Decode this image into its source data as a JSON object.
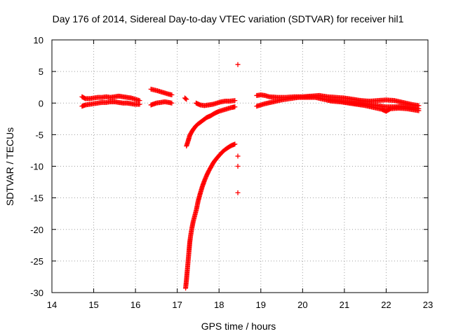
{
  "chart_data": {
    "type": "scatter",
    "title": "Day 176 of 2014, Sidereal Day-to-day VTEC variation (SDTVAR) for receiver hil1",
    "xlabel": "GPS time / hours",
    "ylabel": "SDTVAR / TECUs",
    "xlim": [
      14,
      23
    ],
    "ylim": [
      -30,
      10
    ],
    "xticks": [
      14,
      15,
      16,
      17,
      18,
      19,
      20,
      21,
      22,
      23
    ],
    "yticks": [
      -30,
      -25,
      -20,
      -15,
      -10,
      -5,
      0,
      5,
      10
    ],
    "grid": "dotted",
    "marker": "+",
    "color": "#ff0000",
    "series": [
      {
        "name": "upper-band-a",
        "points": [
          [
            14.72,
            1.0
          ],
          [
            14.8,
            0.7
          ],
          [
            14.9,
            0.7
          ],
          [
            15.0,
            0.8
          ],
          [
            15.1,
            0.9
          ],
          [
            15.2,
            0.9
          ],
          [
            15.3,
            1.0
          ],
          [
            15.4,
            0.9
          ],
          [
            15.5,
            1.0
          ],
          [
            15.6,
            1.1
          ],
          [
            15.7,
            1.0
          ],
          [
            15.8,
            0.9
          ],
          [
            15.9,
            0.8
          ],
          [
            16.0,
            0.6
          ],
          [
            16.1,
            0.4
          ]
        ]
      },
      {
        "name": "lower-band-a",
        "points": [
          [
            14.72,
            -0.5
          ],
          [
            14.8,
            -0.3
          ],
          [
            14.9,
            -0.2
          ],
          [
            15.0,
            -0.1
          ],
          [
            15.1,
            0.0
          ],
          [
            15.2,
            0.1
          ],
          [
            15.3,
            0.1
          ],
          [
            15.4,
            0.2
          ],
          [
            15.5,
            0.2
          ],
          [
            15.6,
            0.1
          ],
          [
            15.7,
            0.0
          ],
          [
            15.8,
            0.0
          ],
          [
            15.9,
            -0.1
          ],
          [
            16.0,
            -0.2
          ],
          [
            16.1,
            -0.2
          ]
        ]
      },
      {
        "name": "band-b-upper",
        "points": [
          [
            16.37,
            2.2
          ],
          [
            16.5,
            2.0
          ],
          [
            16.6,
            1.8
          ],
          [
            16.7,
            1.6
          ],
          [
            16.8,
            1.4
          ],
          [
            16.87,
            1.3
          ]
        ]
      },
      {
        "name": "band-b-lower",
        "points": [
          [
            16.37,
            -0.3
          ],
          [
            16.5,
            0.0
          ],
          [
            16.6,
            0.1
          ],
          [
            16.7,
            0.2
          ],
          [
            16.8,
            0.1
          ],
          [
            16.87,
            0.0
          ]
        ]
      },
      {
        "name": "isolated-17.2",
        "points": [
          [
            17.18,
            0.8
          ],
          [
            17.22,
            0.6
          ]
        ]
      },
      {
        "name": "band-c",
        "points": [
          [
            17.45,
            0.0
          ],
          [
            17.55,
            -0.3
          ],
          [
            17.65,
            -0.4
          ],
          [
            17.75,
            -0.3
          ],
          [
            17.85,
            -0.2
          ],
          [
            17.95,
            0.0
          ],
          [
            18.05,
            0.2
          ],
          [
            18.15,
            0.3
          ],
          [
            18.25,
            0.3
          ],
          [
            18.38,
            0.4
          ]
        ]
      },
      {
        "name": "curve-upper",
        "points": [
          [
            17.22,
            -6.8
          ],
          [
            17.26,
            -6.0
          ],
          [
            17.3,
            -5.1
          ],
          [
            17.35,
            -4.5
          ],
          [
            17.4,
            -4.0
          ],
          [
            17.45,
            -3.6
          ],
          [
            17.5,
            -3.3
          ],
          [
            17.6,
            -2.8
          ],
          [
            17.7,
            -2.3
          ],
          [
            17.8,
            -2.0
          ],
          [
            17.9,
            -1.6
          ],
          [
            18.0,
            -1.3
          ],
          [
            18.1,
            -1.1
          ],
          [
            18.2,
            -0.9
          ],
          [
            18.3,
            -0.7
          ],
          [
            18.38,
            -0.6
          ]
        ]
      },
      {
        "name": "curve-lower",
        "points": [
          [
            17.2,
            -29.3
          ],
          [
            17.22,
            -28.0
          ],
          [
            17.24,
            -26.5
          ],
          [
            17.26,
            -25.0
          ],
          [
            17.28,
            -23.5
          ],
          [
            17.3,
            -22.0
          ],
          [
            17.32,
            -21.0
          ],
          [
            17.35,
            -19.8
          ],
          [
            17.38,
            -18.8
          ],
          [
            17.42,
            -17.8
          ],
          [
            17.46,
            -16.8
          ],
          [
            17.5,
            -15.5
          ],
          [
            17.55,
            -14.3
          ],
          [
            17.6,
            -13.2
          ],
          [
            17.65,
            -12.3
          ],
          [
            17.7,
            -11.5
          ],
          [
            17.75,
            -10.8
          ],
          [
            17.8,
            -10.2
          ],
          [
            17.85,
            -9.6
          ],
          [
            17.9,
            -9.1
          ],
          [
            18.0,
            -8.3
          ],
          [
            18.1,
            -7.6
          ],
          [
            18.2,
            -7.1
          ],
          [
            18.3,
            -6.7
          ],
          [
            18.38,
            -6.5
          ]
        ]
      },
      {
        "name": "outliers-18.45",
        "points": [
          [
            18.45,
            6.1
          ],
          [
            18.45,
            -8.4
          ],
          [
            18.45,
            -10.0
          ],
          [
            18.45,
            -14.2
          ]
        ]
      },
      {
        "name": "upper-band-d",
        "points": [
          [
            18.9,
            1.2
          ],
          [
            19.0,
            1.3
          ],
          [
            19.1,
            1.2
          ],
          [
            19.2,
            1.0
          ],
          [
            19.4,
            0.9
          ],
          [
            19.6,
            0.9
          ],
          [
            19.8,
            1.0
          ],
          [
            20.0,
            1.0
          ],
          [
            20.2,
            1.1
          ],
          [
            20.4,
            1.2
          ],
          [
            20.6,
            1.0
          ],
          [
            20.8,
            0.9
          ],
          [
            21.0,
            0.8
          ],
          [
            21.2,
            0.6
          ],
          [
            21.4,
            0.4
          ],
          [
            21.6,
            0.3
          ],
          [
            21.8,
            0.4
          ],
          [
            22.0,
            0.5
          ],
          [
            22.2,
            0.4
          ],
          [
            22.4,
            0.1
          ],
          [
            22.6,
            -0.2
          ],
          [
            22.78,
            -0.4
          ]
        ]
      },
      {
        "name": "lower-band-d",
        "points": [
          [
            18.9,
            -0.5
          ],
          [
            19.0,
            -0.3
          ],
          [
            19.1,
            -0.1
          ],
          [
            19.3,
            0.2
          ],
          [
            19.5,
            0.5
          ],
          [
            19.7,
            0.7
          ],
          [
            19.9,
            0.9
          ],
          [
            20.1,
            0.9
          ],
          [
            20.3,
            0.9
          ],
          [
            20.5,
            0.6
          ],
          [
            20.7,
            0.3
          ],
          [
            20.9,
            0.2
          ],
          [
            21.1,
            0.0
          ],
          [
            21.3,
            -0.2
          ],
          [
            21.5,
            -0.4
          ],
          [
            21.7,
            -0.7
          ],
          [
            21.9,
            -1.0
          ],
          [
            22.0,
            -1.3
          ],
          [
            22.1,
            -0.9
          ],
          [
            22.3,
            -0.8
          ],
          [
            22.5,
            -0.9
          ],
          [
            22.78,
            -1.2
          ]
        ]
      },
      {
        "name": "middle-band-d",
        "points": [
          [
            20.6,
            0.5
          ],
          [
            20.8,
            0.4
          ],
          [
            21.0,
            0.2
          ],
          [
            21.2,
            0.0
          ],
          [
            21.4,
            -0.1
          ],
          [
            21.6,
            -0.2
          ],
          [
            21.8,
            -0.4
          ],
          [
            22.0,
            -0.6
          ],
          [
            22.2,
            -0.6
          ],
          [
            22.4,
            -0.5
          ],
          [
            22.6,
            -0.7
          ],
          [
            22.78,
            -0.9
          ]
        ]
      }
    ]
  }
}
